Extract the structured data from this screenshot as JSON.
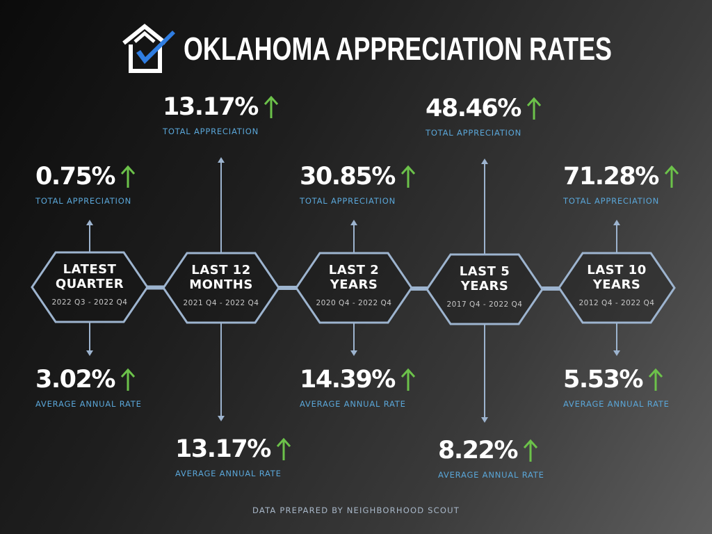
{
  "header": {
    "title": "OKLAHOMA APPRECIATION RATES",
    "logo_icon": "house-check-icon"
  },
  "colors": {
    "accent_blue": "#5aa6d8",
    "arrow_green": "#6cc24a",
    "hex_stroke": "#9db4cf",
    "logo_check": "#2f7de1"
  },
  "periods": [
    {
      "label_line1": "LATEST",
      "label_line2": "QUARTER",
      "range": "2022 Q3 - 2022 Q4",
      "total": {
        "value": "0.75%",
        "label": "TOTAL APPRECIATION",
        "trend": "up"
      },
      "annual": {
        "value": "3.02%",
        "label": "AVERAGE ANNUAL RATE",
        "trend": "up"
      }
    },
    {
      "label_line1": "LAST 12",
      "label_line2": "MONTHS",
      "range": "2021 Q4 - 2022 Q4",
      "total": {
        "value": "13.17%",
        "label": "TOTAL APPRECIATION",
        "trend": "up"
      },
      "annual": {
        "value": "13.17%",
        "label": "AVERAGE ANNUAL RATE",
        "trend": "up"
      }
    },
    {
      "label_line1": "LAST 2",
      "label_line2": "YEARS",
      "range": "2020 Q4 - 2022 Q4",
      "total": {
        "value": "30.85%",
        "label": "TOTAL APPRECIATION",
        "trend": "up"
      },
      "annual": {
        "value": "14.39%",
        "label": "AVERAGE ANNUAL RATE",
        "trend": "up"
      }
    },
    {
      "label_line1": "LAST 5",
      "label_line2": "YEARS",
      "range": "2017 Q4 - 2022 Q4",
      "total": {
        "value": "48.46%",
        "label": "TOTAL APPRECIATION",
        "trend": "up"
      },
      "annual": {
        "value": "8.22%",
        "label": "AVERAGE ANNUAL RATE",
        "trend": "up"
      }
    },
    {
      "label_line1": "LAST 10",
      "label_line2": "YEARS",
      "range": "2012 Q4 - 2022 Q4",
      "total": {
        "value": "71.28%",
        "label": "TOTAL APPRECIATION",
        "trend": "up"
      },
      "annual": {
        "value": "5.53%",
        "label": "AVERAGE ANNUAL RATE",
        "trend": "up"
      }
    }
  ],
  "footer": {
    "credit": "DATA PREPARED BY NEIGHBORHOOD SCOUT"
  }
}
